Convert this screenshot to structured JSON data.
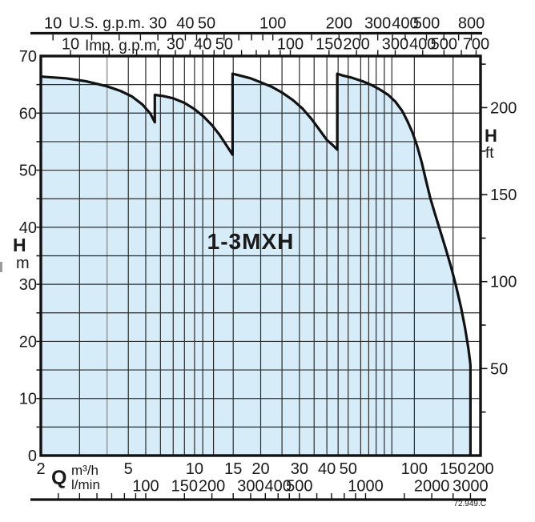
{
  "series_label": "1-3MXH",
  "doc_code": "72.949.C",
  "labels": {
    "us_gpm": "U.S. g.p.m.",
    "imp_gpm": "Imp. g.p.m.",
    "q": "Q",
    "m3h_unit": "m³/h",
    "lmin_unit": "l/min",
    "h_left": "H",
    "m_left": "m",
    "h_right": "H",
    "ft_right": "ft"
  },
  "colors": {
    "fill": "#d6ecf8",
    "line": "#121212",
    "grid": "#2b2b2b",
    "grid_light": "#9b9b9b",
    "text": "#1a1a1a",
    "background": "#ffffff"
  },
  "chart_data": {
    "type": "area",
    "title": "1-3MXH",
    "x_axis": {
      "scale": "log",
      "label": "Q",
      "units": [
        "m³/h",
        "l/min"
      ],
      "range_m3h": [
        2,
        200
      ],
      "m3h_ticks": [
        2,
        5,
        10,
        15,
        20,
        30,
        40,
        50,
        100,
        150,
        200
      ],
      "lmin_ticks": [
        100,
        150,
        200,
        300,
        400,
        500,
        1000,
        2000,
        3000
      ],
      "lmin_minor_ticks": [
        40,
        50,
        60,
        70,
        80,
        90,
        100,
        150,
        200,
        250,
        300,
        350,
        400,
        450,
        500,
        600,
        700,
        800,
        900,
        1000,
        1500,
        2000,
        2500,
        3000
      ]
    },
    "top_axis": {
      "us_label": "U.S. g.p.m.",
      "us_gpm_ticks": [
        10,
        30,
        40,
        50,
        100,
        200,
        300,
        400,
        500,
        800
      ],
      "us_gpm_minor_ticks": [
        10,
        15,
        20,
        25,
        30,
        35,
        40,
        45,
        50,
        60,
        70,
        80,
        90,
        100,
        150,
        200,
        250,
        300,
        350,
        400,
        500,
        600,
        700,
        800
      ],
      "imp_label": "Imp. g.p.m.",
      "imp_gpm_ticks": [
        10,
        30,
        40,
        50,
        100,
        150,
        200,
        300,
        400,
        500,
        700
      ],
      "imp_gpm_minor_ticks": [
        10,
        15,
        20,
        25,
        30,
        35,
        40,
        45,
        50,
        60,
        70,
        80,
        90,
        100,
        150,
        200,
        250,
        300,
        400,
        500,
        600,
        700
      ]
    },
    "y_axis": {
      "label": "H",
      "unit": "m",
      "range": [
        0,
        70
      ],
      "ticks": [
        0,
        10,
        20,
        30,
        40,
        50,
        60,
        70
      ],
      "grid_step_m": 5
    },
    "y2_axis": {
      "label": "H",
      "unit": "ft",
      "ticks": [
        50,
        100,
        150,
        200
      ],
      "minor_tick_step_ft": 25,
      "minor_tick_range_ft": [
        25,
        225
      ]
    },
    "grid_v_m3h": [
      3,
      4,
      5,
      6,
      7,
      8,
      9,
      10,
      10.9,
      12.2,
      15,
      20,
      25,
      30,
      35,
      40,
      45,
      50,
      57,
      62,
      67,
      73,
      79,
      100,
      150
    ],
    "grid_v_light_m3h": [
      4
    ],
    "envelope_q_m3h_h_m": [
      [
        2,
        66.4
      ],
      [
        2.6,
        66.1
      ],
      [
        3.2,
        65.6
      ],
      [
        4,
        64.7
      ],
      [
        4.6,
        63.9
      ],
      [
        5.2,
        62.9
      ],
      [
        5.8,
        61.5
      ],
      [
        6.3,
        59.9
      ],
      [
        6.6,
        58.4
      ],
      [
        6.6,
        63.2
      ],
      [
        7.2,
        63.0
      ],
      [
        8,
        62.6
      ],
      [
        9,
        61.8
      ],
      [
        10,
        60.7
      ],
      [
        11,
        59.4
      ],
      [
        12,
        57.9
      ],
      [
        13,
        56.2
      ],
      [
        14,
        54.3
      ],
      [
        14.9,
        52.7
      ],
      [
        14.9,
        66.9
      ],
      [
        16,
        66.6
      ],
      [
        18,
        66.1
      ],
      [
        20,
        65.4
      ],
      [
        22.5,
        64.6
      ],
      [
        25,
        63.6
      ],
      [
        28,
        62.3
      ],
      [
        31,
        60.8
      ],
      [
        34,
        59.0
      ],
      [
        37,
        57.1
      ],
      [
        40,
        55.3
      ],
      [
        42.5,
        54.4
      ],
      [
        44.6,
        53.6
      ],
      [
        44.6,
        66.9
      ],
      [
        47,
        66.6
      ],
      [
        52,
        66.2
      ],
      [
        58,
        65.6
      ],
      [
        64,
        64.9
      ],
      [
        70,
        64.1
      ],
      [
        76,
        63.2
      ],
      [
        82,
        62.0
      ],
      [
        88,
        60.4
      ],
      [
        93,
        58.6
      ],
      [
        98,
        56.6
      ],
      [
        103,
        54.2
      ],
      [
        108,
        51.4
      ],
      [
        113,
        48.2
      ],
      [
        118,
        45.2
      ],
      [
        124,
        42.4
      ],
      [
        131,
        39.4
      ],
      [
        139,
        36.2
      ],
      [
        147,
        33.0
      ],
      [
        155,
        29.6
      ],
      [
        163,
        26.0
      ],
      [
        170,
        22.4
      ],
      [
        176,
        18.8
      ],
      [
        179,
        16.6
      ],
      [
        180,
        15.8
      ],
      [
        180,
        0
      ]
    ]
  }
}
